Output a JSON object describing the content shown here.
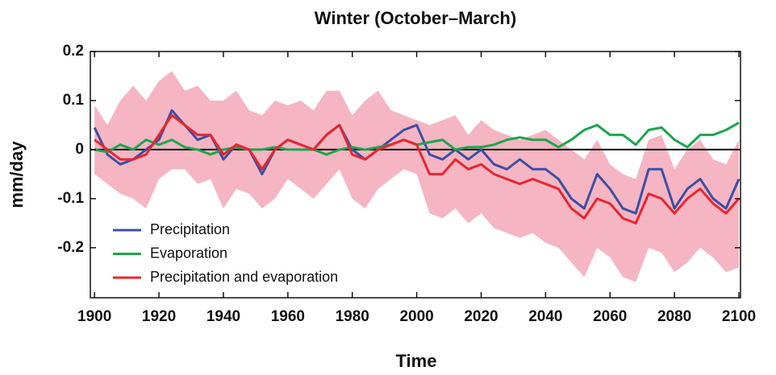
{
  "chart_data": {
    "type": "line",
    "title": "Winter (October–March)",
    "xlabel": "Time",
    "ylabel": "mm/day",
    "x": [
      1900,
      1904,
      1908,
      1912,
      1916,
      1920,
      1924,
      1928,
      1932,
      1936,
      1940,
      1944,
      1948,
      1952,
      1956,
      1960,
      1964,
      1968,
      1972,
      1976,
      1980,
      1984,
      1988,
      1992,
      1996,
      2000,
      2004,
      2008,
      2012,
      2016,
      2020,
      2024,
      2028,
      2032,
      2036,
      2040,
      2044,
      2048,
      2052,
      2056,
      2060,
      2064,
      2068,
      2072,
      2076,
      2080,
      2084,
      2088,
      2092,
      2096,
      2100
    ],
    "band": {
      "color": "#f5b5c3",
      "upper": [
        0.09,
        0.05,
        0.1,
        0.13,
        0.1,
        0.14,
        0.16,
        0.12,
        0.13,
        0.1,
        0.1,
        0.12,
        0.08,
        0.07,
        0.1,
        0.09,
        0.1,
        0.08,
        0.12,
        0.12,
        0.07,
        0.1,
        0.12,
        0.08,
        0.07,
        0.06,
        0.05,
        0.06,
        0.07,
        0.03,
        0.06,
        0.04,
        0.03,
        0.02,
        0.03,
        0.04,
        0.02,
        0.0,
        -0.02,
        0.02,
        -0.03,
        -0.05,
        -0.06,
        0.02,
        0.03,
        -0.04,
        0.0,
        0.02,
        -0.02,
        -0.03,
        0.02
      ],
      "lower": [
        -0.05,
        -0.07,
        -0.09,
        -0.1,
        -0.12,
        -0.06,
        -0.04,
        -0.04,
        -0.07,
        -0.06,
        -0.12,
        -0.08,
        -0.09,
        -0.12,
        -0.1,
        -0.06,
        -0.08,
        -0.1,
        -0.07,
        -0.04,
        -0.1,
        -0.12,
        -0.08,
        -0.06,
        -0.04,
        -0.05,
        -0.13,
        -0.14,
        -0.12,
        -0.15,
        -0.13,
        -0.16,
        -0.17,
        -0.18,
        -0.17,
        -0.19,
        -0.2,
        -0.23,
        -0.26,
        -0.2,
        -0.22,
        -0.26,
        -0.27,
        -0.2,
        -0.21,
        -0.25,
        -0.23,
        -0.2,
        -0.22,
        -0.25,
        -0.24
      ]
    },
    "series": [
      {
        "name": "Precipitation",
        "color": "#3b4fa3",
        "values": [
          0.045,
          -0.01,
          -0.03,
          -0.02,
          0.0,
          0.02,
          0.08,
          0.05,
          0.02,
          0.03,
          -0.02,
          0.01,
          0.0,
          -0.05,
          0.0,
          0.02,
          0.01,
          0.0,
          0.03,
          0.05,
          0.0,
          -0.02,
          0.0,
          0.02,
          0.04,
          0.05,
          -0.01,
          -0.02,
          0.0,
          -0.02,
          0.0,
          -0.03,
          -0.04,
          -0.02,
          -0.04,
          -0.04,
          -0.06,
          -0.1,
          -0.12,
          -0.05,
          -0.08,
          -0.12,
          -0.13,
          -0.04,
          -0.04,
          -0.12,
          -0.08,
          -0.06,
          -0.1,
          -0.12,
          -0.06
        ]
      },
      {
        "name": "Evaporation",
        "color": "#1ba64b",
        "values": [
          0.0,
          -0.005,
          0.01,
          0.0,
          0.02,
          0.01,
          0.02,
          0.005,
          0.0,
          -0.01,
          0.0,
          0.005,
          0.0,
          0.0,
          0.005,
          0.0,
          0.0,
          0.0,
          -0.01,
          0.0,
          0.005,
          0.0,
          0.005,
          0.01,
          0.02,
          0.01,
          0.015,
          0.02,
          0.0,
          0.005,
          0.005,
          0.01,
          0.02,
          0.025,
          0.02,
          0.02,
          0.005,
          0.02,
          0.04,
          0.05,
          0.03,
          0.03,
          0.01,
          0.04,
          0.045,
          0.02,
          0.005,
          0.03,
          0.03,
          0.04,
          0.055
        ]
      },
      {
        "name": "Precipitation and evaporation",
        "color": "#e8262d",
        "values": [
          0.02,
          0.0,
          -0.02,
          -0.02,
          -0.01,
          0.03,
          0.07,
          0.05,
          0.03,
          0.03,
          -0.01,
          0.01,
          0.0,
          -0.04,
          0.0,
          0.02,
          0.01,
          0.0,
          0.03,
          0.05,
          -0.01,
          -0.02,
          0.0,
          0.01,
          0.02,
          0.01,
          -0.05,
          -0.05,
          -0.02,
          -0.04,
          -0.03,
          -0.05,
          -0.06,
          -0.07,
          -0.06,
          -0.07,
          -0.08,
          -0.12,
          -0.14,
          -0.1,
          -0.11,
          -0.14,
          -0.15,
          -0.09,
          -0.1,
          -0.13,
          -0.1,
          -0.08,
          -0.11,
          -0.13,
          -0.1
        ]
      }
    ],
    "xlim": [
      1898.7,
      2100.5
    ],
    "ylim": [
      -0.302,
      0.2
    ],
    "xticks": [
      1900,
      1920,
      1940,
      1960,
      1980,
      2000,
      2020,
      2040,
      2060,
      2080,
      2100
    ],
    "yticks": [
      0.2,
      0.1,
      0,
      -0.1,
      -0.2
    ],
    "hline": 0,
    "legend": "lower-left"
  }
}
